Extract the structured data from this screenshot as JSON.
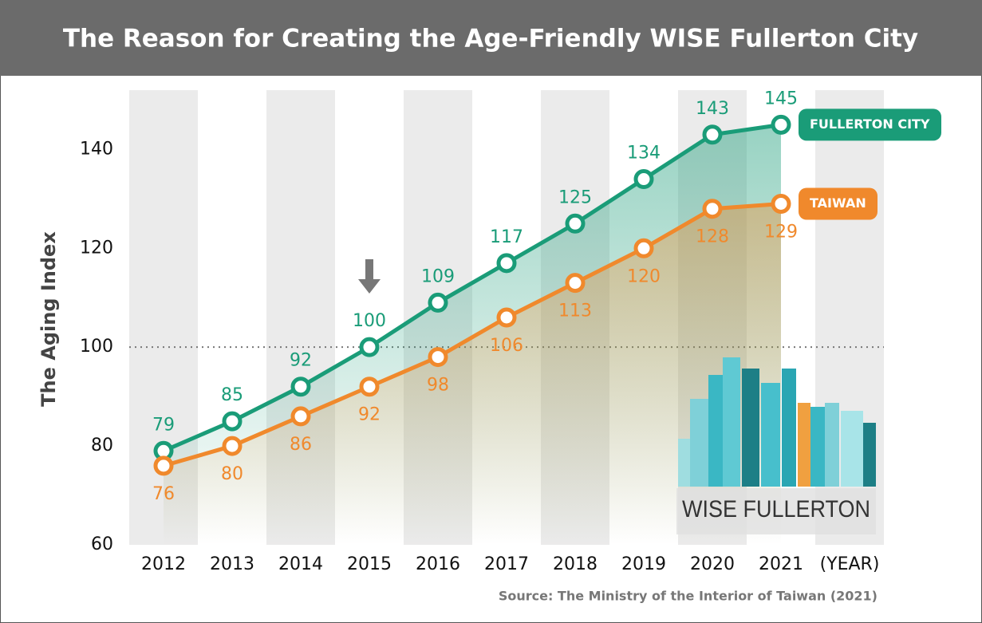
{
  "chart_data": {
    "type": "line",
    "title": "The Reason for Creating the Age-Friendly WISE Fullerton City",
    "y_label": "The Aging Index",
    "x_label": "(YEAR)",
    "categories": [
      "2012",
      "2013",
      "2014",
      "2015",
      "2016",
      "2017",
      "2018",
      "2019",
      "2020",
      "2021"
    ],
    "series": [
      {
        "name": "FULLERTON CITY",
        "color": "#1a9c78",
        "values": [
          79,
          85,
          92,
          100,
          109,
          117,
          125,
          134,
          143,
          145
        ]
      },
      {
        "name": "TAIWAN",
        "color": "#f0892c",
        "values": [
          76,
          80,
          86,
          92,
          98,
          106,
          113,
          120,
          128,
          129
        ]
      }
    ],
    "ylim": [
      60,
      152
    ],
    "yticks": [
      60,
      80,
      100,
      120,
      140
    ],
    "reference_line": 100,
    "logo_text": "WISE FULLERTON",
    "source": "Source: The Ministry of the Interior of Taiwan (2021)"
  }
}
